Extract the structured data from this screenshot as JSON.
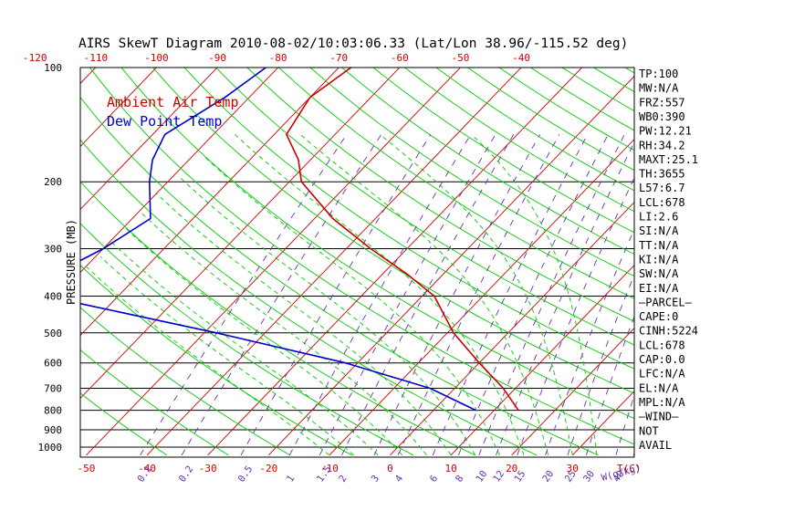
{
  "chart_data": {
    "type": "line",
    "title": "AIRS SkewT Diagram 2010-08-02/10:03:06.33 (Lat/Lon 38.96/-115.52 deg)",
    "ylabel": "PRESSURE (MB)",
    "xlabel_bottom": "T(C)",
    "mixing_ratio_label": "W(g/kg)",
    "legend": [
      "Ambient Air Temp",
      "Dew Point Temp"
    ],
    "colors": {
      "temperature": "#cc0000",
      "dewpoint": "#0000cc",
      "isotherm": "#cc0000",
      "dry_adiabat": "#00cc00",
      "moist_adiabat": "#00cc00",
      "mixing_ratio": "#6633aa",
      "axis_text": "#000000",
      "top_ticks": "#cc0000",
      "bottom_ticks": "#cc0000"
    },
    "top_axis_ticks": [
      "-120",
      "-110",
      "-100",
      "-90",
      "-80",
      "-70",
      "-60",
      "-50",
      "-40"
    ],
    "top_axis_values": [
      -120,
      -110,
      -100,
      -90,
      -80,
      -70,
      -60,
      -50,
      -40
    ],
    "bottom_axis_ticks": [
      "-50",
      "-40",
      "-30",
      "-20",
      "-10",
      "0",
      "10",
      "20",
      "30"
    ],
    "bottom_axis_values": [
      -50,
      -40,
      -30,
      -20,
      -10,
      0,
      10,
      20,
      30
    ],
    "pressure_ticks": [
      "100",
      "200",
      "300",
      "400",
      "500",
      "600",
      "700",
      "800",
      "900",
      "1000"
    ],
    "pressure_values": [
      100,
      200,
      300,
      400,
      500,
      600,
      700,
      800,
      900,
      1000
    ],
    "mixing_ratio_ticks": [
      "0.1",
      "0.2",
      "0.5",
      "1",
      "1.5",
      "2",
      "3",
      "4",
      "6",
      "8",
      "10",
      "12",
      "15",
      "20",
      "25",
      "30",
      "40"
    ],
    "mixing_ratio_values": [
      0.1,
      0.2,
      0.5,
      1,
      1.5,
      2,
      3,
      4,
      6,
      8,
      10,
      12,
      15,
      20,
      25,
      30,
      40
    ],
    "isotherms": [
      -150,
      -140,
      -130,
      -120,
      -110,
      -100,
      -90,
      -80,
      -70,
      -60,
      -50,
      -40,
      -30,
      -20,
      -10,
      0,
      10,
      20,
      30,
      40,
      50
    ],
    "ylim": [
      100,
      1000
    ],
    "temperature_profile": {
      "name": "Ambient Air Temp",
      "pressure": [
        100,
        120,
        150,
        175,
        200,
        250,
        300,
        350,
        400,
        500,
        600,
        700,
        800
      ],
      "temp": [
        -68,
        -70,
        -68,
        -62,
        -58,
        -47,
        -36,
        -26,
        -18,
        -9,
        0,
        8,
        14
      ]
    },
    "dewpoint_profile": {
      "name": "Dew Point Temp",
      "pressure": [
        100,
        120,
        150,
        175,
        200,
        250,
        300,
        350,
        400,
        500,
        600,
        700,
        800
      ],
      "temp": [
        -82,
        -84,
        -88,
        -86,
        -83,
        -77,
        -80,
        -84,
        -82,
        -48,
        -22,
        -4,
        7
      ]
    }
  },
  "indices": [
    "TP:100",
    "MW:N/A",
    "FRZ:557",
    "WB0:390",
    "PW:12.21",
    "RH:34.2",
    "MAXT:25.1",
    "TH:3655",
    "L57:6.7",
    "LCL:678",
    "LI:2.6",
    "SI:N/A",
    "TT:N/A",
    "KI:N/A",
    "SW:N/A",
    "EI:N/A",
    "—PARCEL—",
    "CAPE:0",
    "CINH:5224",
    "LCL:678",
    "CAP:0.0",
    "LFC:N/A",
    "EL:N/A",
    "MPL:N/A",
    "—WIND—",
    "NOT",
    "AVAIL"
  ]
}
